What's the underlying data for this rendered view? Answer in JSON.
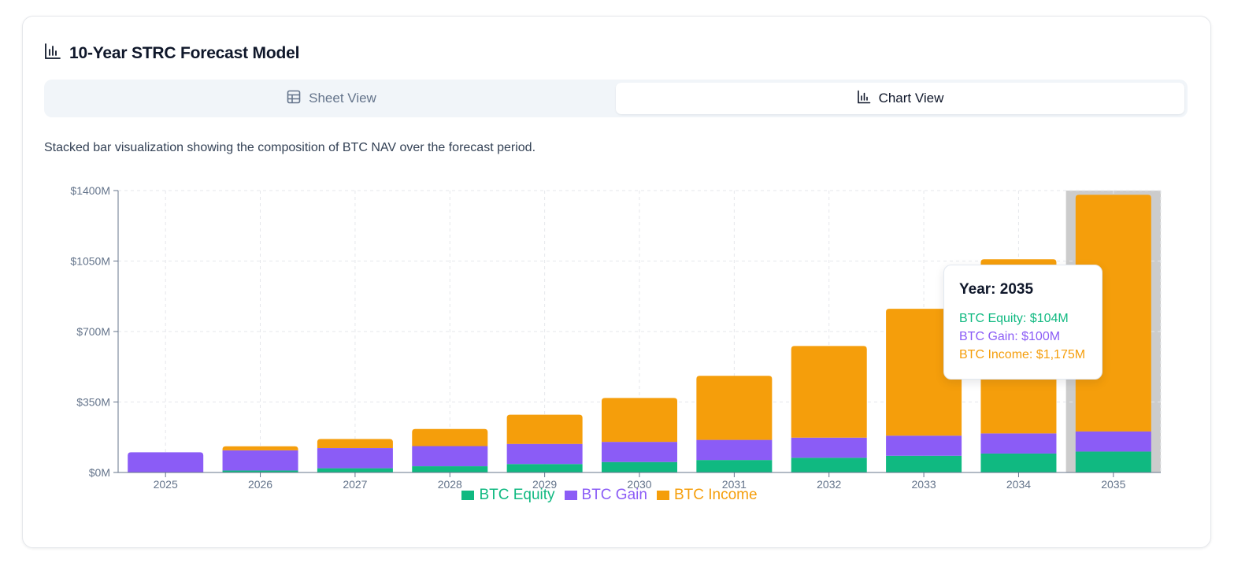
{
  "header": {
    "title": "10-Year STRC Forecast Model"
  },
  "tabs": [
    {
      "label": "Sheet View",
      "icon": "table-icon",
      "active": false
    },
    {
      "label": "Chart View",
      "icon": "bar-chart-icon",
      "active": true
    }
  ],
  "description": "Stacked bar visualization showing the composition of BTC NAV over the forecast period.",
  "colors": {
    "equity": "#10b981",
    "gain": "#8b5cf6",
    "income": "#f59e0b"
  },
  "chart_data": {
    "type": "bar",
    "stacked": true,
    "categories": [
      "2025",
      "2026",
      "2027",
      "2028",
      "2029",
      "2030",
      "2031",
      "2032",
      "2033",
      "2034",
      "2035"
    ],
    "series": [
      {
        "name": "BTC Equity",
        "values": [
          0,
          10,
          21,
          31,
          42,
          52,
          62,
          73,
          83,
          94,
          104
        ]
      },
      {
        "name": "BTC Gain",
        "values": [
          100,
          100,
          100,
          100,
          100,
          100,
          100,
          100,
          100,
          100,
          100
        ]
      },
      {
        "name": "BTC Income",
        "values": [
          0,
          20,
          45,
          85,
          145,
          218,
          318,
          455,
          630,
          865,
          1175
        ]
      }
    ],
    "y_ticks": [
      "$0M",
      "$350M",
      "$700M",
      "$1050M",
      "$1400M"
    ],
    "ylim": [
      0,
      1400
    ],
    "grid": true,
    "legend": "bottom-center",
    "highlighted_category": "2035",
    "tooltip": {
      "title": "Year: 2035",
      "lines": [
        "BTC Equity: $104M",
        "BTC Gain: $100M",
        "BTC Income: $1,175M"
      ]
    }
  }
}
